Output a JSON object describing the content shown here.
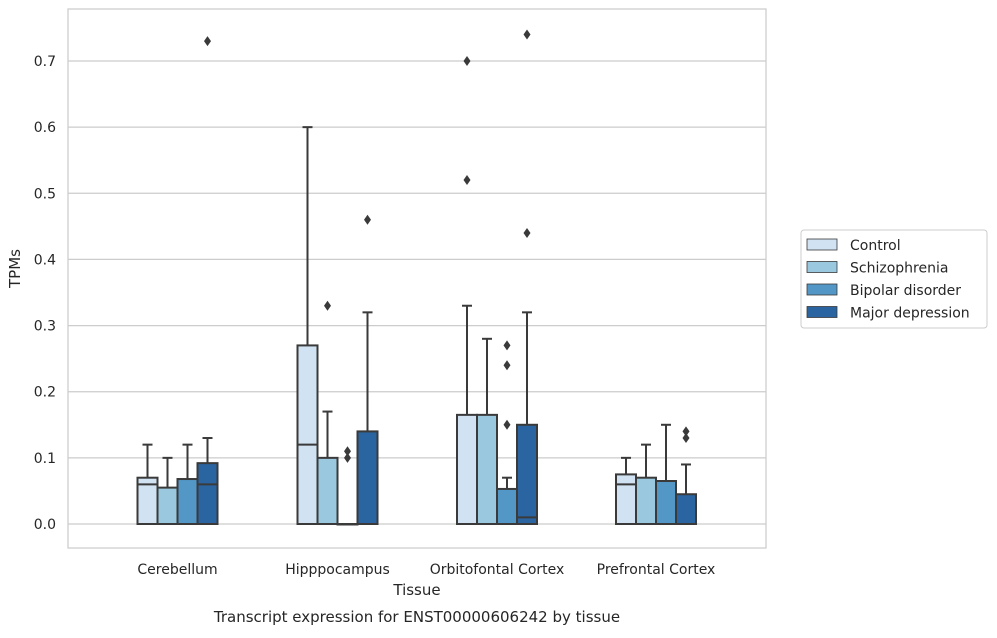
{
  "chart_data": {
    "type": "box",
    "title": "",
    "caption": "Transcript expression for ENST00000606242 by tissue",
    "xlabel": "Tissue",
    "ylabel": "TPMs",
    "ylim": [
      -0.036,
      0.78
    ],
    "yticks": [
      "0.0",
      "0.1",
      "0.2",
      "0.3",
      "0.4",
      "0.5",
      "0.6",
      "0.7"
    ],
    "grid": "horizontal",
    "legend_position": "right",
    "categories": [
      "Cerebellum",
      "Hipppocampus",
      "Orbitofontal Cortex",
      "Prefrontal Cortex"
    ],
    "series": [
      {
        "name": "Control",
        "color": "#d1e2f2",
        "boxes": [
          {
            "q1": 0.0,
            "median": 0.06,
            "q3": 0.07,
            "whisker_low": 0.0,
            "whisker_high": 0.12,
            "outliers": []
          },
          {
            "q1": 0.0,
            "median": 0.12,
            "q3": 0.27,
            "whisker_low": 0.0,
            "whisker_high": 0.6,
            "outliers": []
          },
          {
            "q1": 0.0,
            "median": 0.0,
            "q3": 0.165,
            "whisker_low": 0.0,
            "whisker_high": 0.33,
            "outliers": [
              0.52,
              0.7
            ]
          },
          {
            "q1": 0.0,
            "median": 0.06,
            "q3": 0.075,
            "whisker_low": 0.0,
            "whisker_high": 0.1,
            "outliers": []
          }
        ]
      },
      {
        "name": "Schizophrenia",
        "color": "#9ac8df",
        "boxes": [
          {
            "q1": 0.0,
            "median": 0.0,
            "q3": 0.055,
            "whisker_low": 0.0,
            "whisker_high": 0.1,
            "outliers": []
          },
          {
            "q1": 0.0,
            "median": 0.0,
            "q3": 0.1,
            "whisker_low": 0.0,
            "whisker_high": 0.17,
            "outliers": [
              0.33
            ]
          },
          {
            "q1": 0.0,
            "median": 0.0,
            "q3": 0.165,
            "whisker_low": 0.0,
            "whisker_high": 0.28,
            "outliers": []
          },
          {
            "q1": 0.0,
            "median": 0.0,
            "q3": 0.07,
            "whisker_low": 0.0,
            "whisker_high": 0.12,
            "outliers": []
          }
        ]
      },
      {
        "name": "Bipolar disorder",
        "color": "#5297c6",
        "boxes": [
          {
            "q1": 0.0,
            "median": 0.0,
            "q3": 0.068,
            "whisker_low": 0.0,
            "whisker_high": 0.12,
            "outliers": []
          },
          {
            "q1": 0.0,
            "median": 0.0,
            "q3": 0.0,
            "whisker_low": 0.0,
            "whisker_high": 0.0,
            "outliers": [
              0.1,
              0.11
            ]
          },
          {
            "q1": 0.0,
            "median": 0.0,
            "q3": 0.053,
            "whisker_low": 0.0,
            "whisker_high": 0.07,
            "outliers": [
              0.15,
              0.24,
              0.27
            ]
          },
          {
            "q1": 0.0,
            "median": 0.0,
            "q3": 0.065,
            "whisker_low": 0.0,
            "whisker_high": 0.15,
            "outliers": []
          }
        ]
      },
      {
        "name": "Major depression",
        "color": "#2a65a2",
        "boxes": [
          {
            "q1": 0.0,
            "median": 0.06,
            "q3": 0.092,
            "whisker_low": 0.0,
            "whisker_high": 0.13,
            "outliers": [
              0.73
            ]
          },
          {
            "q1": 0.0,
            "median": 0.0,
            "q3": 0.14,
            "whisker_low": 0.0,
            "whisker_high": 0.32,
            "outliers": [
              0.46
            ]
          },
          {
            "q1": 0.0,
            "median": 0.01,
            "q3": 0.15,
            "whisker_low": 0.0,
            "whisker_high": 0.32,
            "outliers": [
              0.44,
              0.74
            ]
          },
          {
            "q1": 0.0,
            "median": 0.0,
            "q3": 0.045,
            "whisker_low": 0.0,
            "whisker_high": 0.09,
            "outliers": [
              0.13,
              0.14
            ]
          }
        ]
      }
    ]
  }
}
